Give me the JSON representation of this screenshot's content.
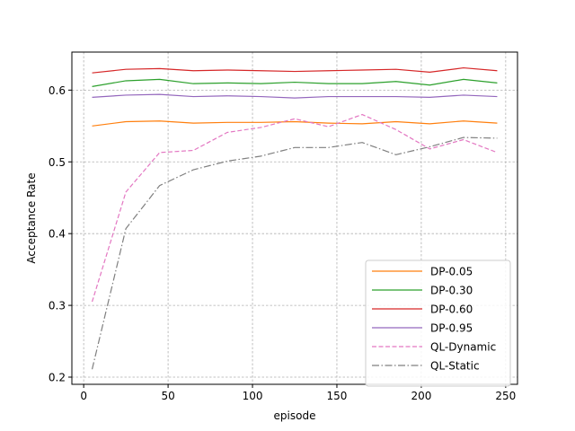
{
  "chart_data": {
    "type": "line",
    "title": "",
    "xlabel": "episode",
    "ylabel": "Acceptance Rate",
    "xlim": [
      -7,
      257
    ],
    "ylim": [
      0.19,
      0.653
    ],
    "xticks": [
      0,
      50,
      100,
      150,
      200,
      250
    ],
    "xtick_labels": [
      "0",
      "50",
      "100",
      "150",
      "200",
      "250"
    ],
    "yticks": [
      0.2,
      0.3,
      0.4,
      0.5,
      0.6
    ],
    "ytick_labels": [
      "0.2",
      "0.3",
      "0.4",
      "0.5",
      "0.6"
    ],
    "grid": true,
    "legend_position": "lower-right",
    "x": [
      5,
      25,
      45,
      65,
      85,
      105,
      125,
      145,
      165,
      185,
      205,
      225,
      245
    ],
    "series": [
      {
        "name": "DP-0.05",
        "color": "#ff7f0e",
        "dash": "solid",
        "values": [
          0.55,
          0.556,
          0.557,
          0.554,
          0.555,
          0.555,
          0.556,
          0.554,
          0.553,
          0.556,
          0.553,
          0.557,
          0.554
        ]
      },
      {
        "name": "DP-0.30",
        "color": "#2ca02c",
        "dash": "solid",
        "values": [
          0.605,
          0.613,
          0.615,
          0.609,
          0.61,
          0.609,
          0.611,
          0.609,
          0.609,
          0.612,
          0.607,
          0.615,
          0.61
        ]
      },
      {
        "name": "DP-0.60",
        "color": "#d62728",
        "dash": "solid",
        "values": [
          0.624,
          0.629,
          0.63,
          0.627,
          0.628,
          0.627,
          0.626,
          0.627,
          0.628,
          0.629,
          0.625,
          0.631,
          0.627
        ]
      },
      {
        "name": "DP-0.95",
        "color": "#9467bd",
        "dash": "solid",
        "values": [
          0.59,
          0.593,
          0.594,
          0.591,
          0.592,
          0.591,
          0.589,
          0.591,
          0.591,
          0.591,
          0.59,
          0.593,
          0.591
        ]
      },
      {
        "name": "QL-Dynamic",
        "color": "#e377c2",
        "dash": "dashed",
        "values": [
          0.305,
          0.458,
          0.513,
          0.516,
          0.541,
          0.548,
          0.56,
          0.549,
          0.566,
          0.545,
          0.518,
          0.531,
          0.513
        ]
      },
      {
        "name": "QL-Static",
        "color": "#7f7f7f",
        "dash": "dashdot",
        "values": [
          0.211,
          0.407,
          0.467,
          0.489,
          0.501,
          0.508,
          0.52,
          0.52,
          0.527,
          0.51,
          0.521,
          0.534,
          0.533
        ]
      }
    ]
  }
}
